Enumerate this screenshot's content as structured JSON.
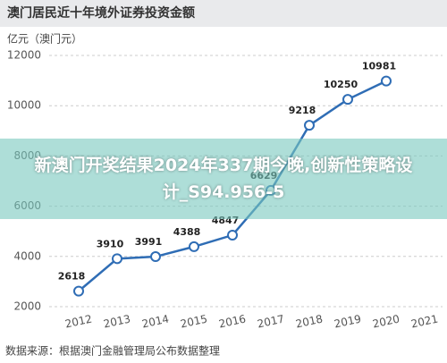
{
  "chart_data": {
    "type": "line",
    "title": "澳门居民近十年境外证券投资金额",
    "y_label": "亿元（澳门元）",
    "categories": [
      "2012",
      "2013",
      "2014",
      "2015",
      "2016",
      "2017",
      "2018",
      "2019",
      "2020",
      "2021"
    ],
    "values": [
      2618,
      3910,
      3991,
      4388,
      4847,
      6629,
      9218,
      10250,
      10981,
      null
    ],
    "color": "#2f6db5",
    "ylim": [
      2000,
      12000
    ],
    "yticks": [
      2000,
      4000,
      6000,
      8000,
      10000,
      12000
    ],
    "grid": true,
    "source": "数据来源：根据澳门金融管理局公布数据整理"
  },
  "overlay": {
    "text": "新澳门开奖结果2024年337期今晚,创新性策略设计_S94.956-5"
  }
}
